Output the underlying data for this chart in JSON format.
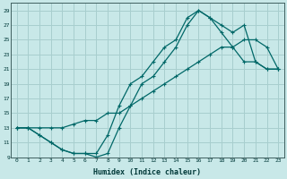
{
  "xlabel": "Humidex (Indice chaleur)",
  "bg_color": "#c8e8e8",
  "grid_color": "#a8cece",
  "line_color": "#006868",
  "xlim": [
    -0.5,
    23.5
  ],
  "ylim": [
    9,
    30
  ],
  "xticks": [
    0,
    1,
    2,
    3,
    4,
    5,
    6,
    7,
    8,
    9,
    10,
    11,
    12,
    13,
    14,
    15,
    16,
    17,
    18,
    19,
    20,
    21,
    22,
    23
  ],
  "yticks": [
    9,
    11,
    13,
    15,
    17,
    19,
    21,
    23,
    25,
    27,
    29
  ],
  "line1_x": [
    0,
    1,
    2,
    3,
    4,
    5,
    6,
    7,
    8,
    9,
    10,
    11,
    12,
    13,
    14,
    15,
    16,
    17,
    18,
    19,
    20,
    21,
    22,
    23
  ],
  "line1_y": [
    13,
    13,
    12,
    11,
    10,
    9.5,
    9.5,
    9,
    9.5,
    13,
    16,
    19,
    20,
    22,
    24,
    27,
    29,
    28,
    27,
    26,
    27,
    22,
    21,
    21
  ],
  "line2_x": [
    0,
    1,
    2,
    3,
    4,
    5,
    6,
    7,
    8,
    9,
    10,
    11,
    12,
    13,
    14,
    15,
    16,
    17,
    18,
    19,
    20,
    21,
    22,
    23
  ],
  "line2_y": [
    13,
    13,
    12,
    11,
    10,
    9.5,
    9.5,
    9.5,
    12,
    16,
    19,
    20,
    22,
    24,
    25,
    28,
    29,
    28,
    26,
    24,
    22,
    22,
    21,
    21
  ],
  "line3_x": [
    0,
    1,
    2,
    3,
    4,
    5,
    6,
    7,
    8,
    9,
    10,
    11,
    12,
    13,
    14,
    15,
    16,
    17,
    18,
    19,
    20,
    21,
    22,
    23
  ],
  "line3_y": [
    13,
    13,
    13,
    13,
    13,
    13.5,
    14,
    14,
    15,
    15,
    16,
    17,
    18,
    19,
    20,
    21,
    22,
    23,
    24,
    24,
    25,
    25,
    24,
    21
  ]
}
